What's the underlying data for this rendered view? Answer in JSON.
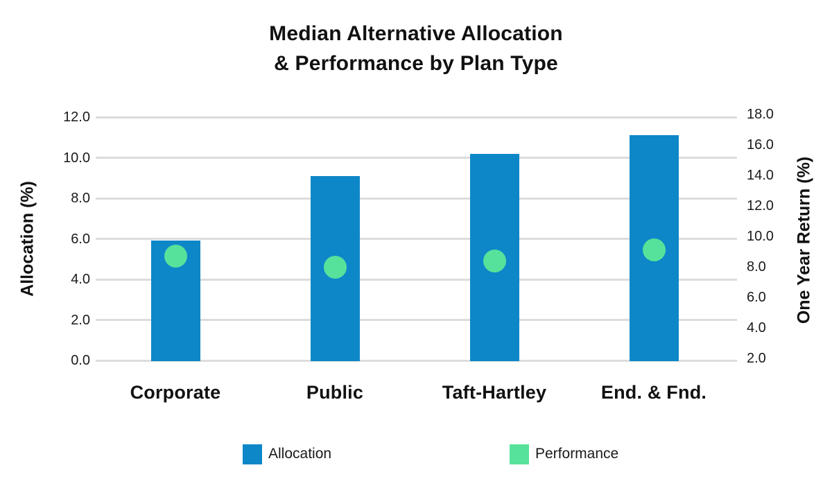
{
  "chart_data": {
    "type": "bar",
    "title_line1": "Median Alternative Allocation",
    "title_line2": "& Performance by Plan Type",
    "categories": [
      "Corporate",
      "Public",
      "Taft-Hartley",
      "End. & Fnd."
    ],
    "series": [
      {
        "name": "Allocation",
        "mark": "bar",
        "axis": "left",
        "values": [
          5.9,
          9.1,
          10.2,
          11.1
        ]
      },
      {
        "name": "Performance",
        "mark": "point",
        "axis": "right",
        "values": [
          8.7,
          8.0,
          8.4,
          9.1
        ]
      }
    ],
    "left_axis": {
      "label": "Allocation (%)",
      "min": 0,
      "max": 12,
      "tick_step": 2,
      "ticks": [
        "12.0",
        "10.0",
        "8.0",
        "6.0",
        "4.0",
        "2.0",
        "0.0"
      ]
    },
    "right_axis": {
      "label": "One Year Return (%)",
      "min": 2,
      "max": 18,
      "tick_step": 2,
      "ticks": [
        "18.0",
        "16.0",
        "14.0",
        "12.0",
        "10.0",
        "8.0",
        "6.0",
        "4.0",
        "2.0"
      ]
    },
    "legend": [
      {
        "label": "Allocation",
        "color": "#0E87C8"
      },
      {
        "label": "Performance",
        "color": "#57E29B"
      }
    ],
    "colors": {
      "bar": "#0E87C8",
      "point": "#57E29B",
      "gridline": "#DCDCDC",
      "text": "#111111"
    },
    "grid": true,
    "legend_position": "bottom"
  }
}
